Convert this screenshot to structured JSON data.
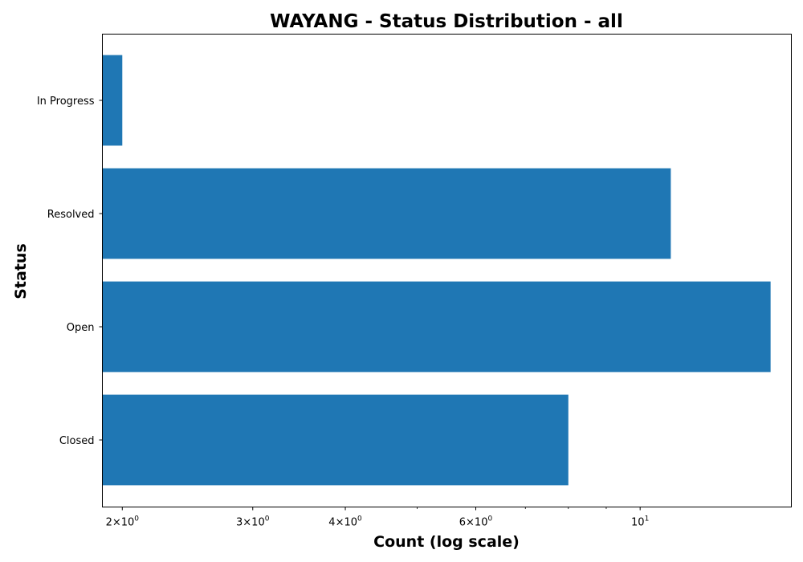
{
  "chart_data": {
    "type": "bar",
    "orientation": "horizontal",
    "title": "WAYANG - Status Distribution - all",
    "xlabel": "Count (log scale)",
    "ylabel": "Status",
    "x_scale": "log",
    "xlim": [
      1.88,
      16
    ],
    "categories": [
      "Closed",
      "Open",
      "Resolved",
      "In Progress"
    ],
    "values": [
      8,
      15,
      11,
      2
    ],
    "x_ticks": [
      {
        "value": 2,
        "mantissa": "2",
        "base": "10",
        "exp": "0"
      },
      {
        "value": 3,
        "mantissa": "3",
        "base": "10",
        "exp": "0"
      },
      {
        "value": 4,
        "mantissa": "4",
        "base": "10",
        "exp": "0"
      },
      {
        "value": 6,
        "mantissa": "6",
        "base": "10",
        "exp": "0"
      },
      {
        "value": 10,
        "mantissa": "",
        "base": "10",
        "exp": "1"
      }
    ],
    "bar_color": "#1f77b4",
    "grid": false,
    "legend": "none"
  }
}
